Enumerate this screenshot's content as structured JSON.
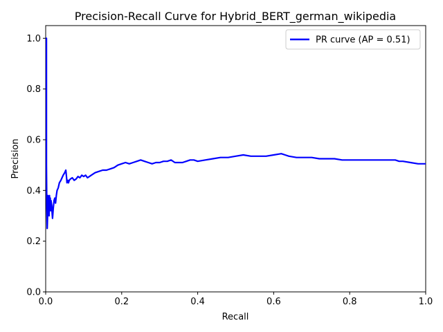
{
  "chart_data": {
    "type": "line",
    "title": "Precision-Recall Curve for Hybrid_BERT_german_wikipedia",
    "xlabel": "Recall",
    "ylabel": "Precision",
    "xlim": [
      0.0,
      1.0
    ],
    "ylim": [
      0.0,
      1.05
    ],
    "xticks": [
      0.0,
      0.2,
      0.4,
      0.6,
      0.8,
      1.0
    ],
    "xtick_labels": [
      "0.0",
      "0.2",
      "0.4",
      "0.6",
      "0.8",
      "1.0"
    ],
    "yticks": [
      0.0,
      0.2,
      0.4,
      0.6,
      0.8,
      1.0
    ],
    "ytick_labels": [
      "0.0",
      "0.2",
      "0.4",
      "0.6",
      "0.8",
      "1.0"
    ],
    "grid": false,
    "legend_position": "top-right",
    "series": [
      {
        "name": "PR curve (AP = 0.51)",
        "color": "#0000ff",
        "x": [
          0.0,
          0.002,
          0.002,
          0.003,
          0.004,
          0.005,
          0.006,
          0.007,
          0.008,
          0.009,
          0.01,
          0.011,
          0.012,
          0.013,
          0.014,
          0.015,
          0.016,
          0.017,
          0.018,
          0.02,
          0.022,
          0.024,
          0.026,
          0.028,
          0.03,
          0.033,
          0.036,
          0.04,
          0.043,
          0.046,
          0.05,
          0.053,
          0.055,
          0.056,
          0.058,
          0.06,
          0.062,
          0.065,
          0.07,
          0.075,
          0.08,
          0.085,
          0.09,
          0.095,
          0.1,
          0.105,
          0.11,
          0.115,
          0.12,
          0.13,
          0.14,
          0.15,
          0.16,
          0.17,
          0.18,
          0.19,
          0.2,
          0.21,
          0.22,
          0.23,
          0.24,
          0.25,
          0.26,
          0.27,
          0.28,
          0.29,
          0.3,
          0.31,
          0.32,
          0.33,
          0.34,
          0.35,
          0.36,
          0.37,
          0.38,
          0.39,
          0.4,
          0.42,
          0.44,
          0.46,
          0.48,
          0.5,
          0.52,
          0.54,
          0.56,
          0.58,
          0.6,
          0.62,
          0.63,
          0.64,
          0.66,
          0.68,
          0.7,
          0.72,
          0.74,
          0.76,
          0.78,
          0.8,
          0.82,
          0.84,
          0.86,
          0.88,
          0.9,
          0.92,
          0.93,
          0.94,
          0.96,
          0.98,
          1.0
        ],
        "y": [
          1.0,
          1.0,
          0.5,
          0.33,
          0.25,
          0.3,
          0.38,
          0.33,
          0.36,
          0.3,
          0.38,
          0.33,
          0.37,
          0.32,
          0.36,
          0.35,
          0.34,
          0.31,
          0.29,
          0.33,
          0.36,
          0.37,
          0.35,
          0.38,
          0.4,
          0.41,
          0.43,
          0.44,
          0.45,
          0.46,
          0.47,
          0.48,
          0.45,
          0.43,
          0.44,
          0.43,
          0.44,
          0.445,
          0.45,
          0.44,
          0.445,
          0.455,
          0.45,
          0.46,
          0.455,
          0.46,
          0.45,
          0.455,
          0.46,
          0.47,
          0.475,
          0.48,
          0.48,
          0.485,
          0.49,
          0.5,
          0.505,
          0.51,
          0.505,
          0.51,
          0.515,
          0.52,
          0.515,
          0.51,
          0.505,
          0.51,
          0.51,
          0.515,
          0.515,
          0.52,
          0.51,
          0.51,
          0.51,
          0.515,
          0.52,
          0.52,
          0.515,
          0.52,
          0.525,
          0.53,
          0.53,
          0.535,
          0.54,
          0.535,
          0.535,
          0.535,
          0.54,
          0.545,
          0.54,
          0.535,
          0.53,
          0.53,
          0.53,
          0.525,
          0.525,
          0.525,
          0.52,
          0.52,
          0.52,
          0.52,
          0.52,
          0.52,
          0.52,
          0.52,
          0.515,
          0.515,
          0.51,
          0.505,
          0.505
        ]
      }
    ]
  }
}
